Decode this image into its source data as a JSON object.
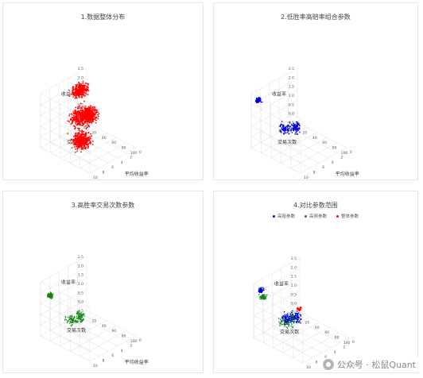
{
  "charts": [
    {
      "title": "1.数据整体分布",
      "legend": []
    },
    {
      "title": "2.低胜率高赔率组合参数",
      "legend": []
    },
    {
      "title": "3.高胜率交易次数参数",
      "legend": []
    },
    {
      "title": "4.对比参数范围",
      "legend": [
        "高赔参数",
        "高频参数",
        "整体参数"
      ]
    }
  ],
  "axes": {
    "x_label": "交易次数",
    "y_label": "平均收益率",
    "z_label": "收益率"
  },
  "tick_labels": {
    "z": [
      "2.5",
      "2.0",
      "1.5",
      "1.0",
      "0.5",
      "0.0",
      "-0.5"
    ],
    "x": [
      "0",
      "20",
      "40",
      "60",
      "80",
      "100"
    ],
    "y": [
      "0",
      "2",
      "4",
      "6",
      "8",
      "10"
    ]
  },
  "colors": {
    "all": "#ff0000",
    "high_odds": "#0000dd",
    "high_freq": "#118811",
    "frame": "#e6e6e6"
  },
  "watermark": "公众号 · 松鼠Quant",
  "chart_data": [
    {
      "type": "scatter",
      "title": "1.数据整体分布",
      "series": [
        {
          "color": "#ff0000",
          "points": "dense cloud"
        }
      ]
    },
    {
      "type": "scatter",
      "title": "2.低胜率高赔率组合参数",
      "series": [
        {
          "color": "#0000dd",
          "points": "sparse clusters"
        }
      ]
    },
    {
      "type": "scatter",
      "title": "3.高胜率交易次数参数",
      "series": [
        {
          "color": "#118811",
          "points": "sparse clusters"
        }
      ]
    },
    {
      "type": "scatter",
      "title": "4.对比参数范围",
      "series": [
        {
          "name": "高赔参数",
          "color": "#0000dd"
        },
        {
          "name": "高频参数",
          "color": "#118811"
        },
        {
          "name": "整体参数",
          "color": "#ff0000"
        }
      ]
    }
  ]
}
